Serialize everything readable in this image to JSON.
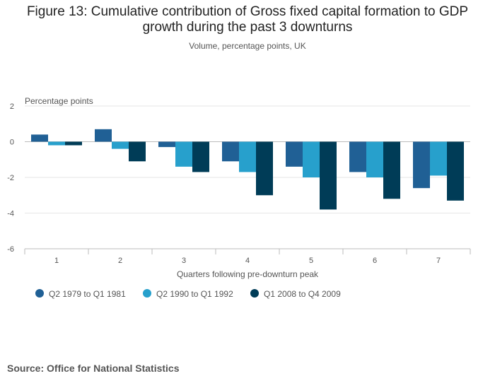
{
  "chart_data": {
    "type": "bar",
    "title": "Figure 13: Cumulative contribution of Gross fixed capital formation to GDP growth during the past 3 downturns",
    "title_lines": [
      "Figure 13: Cumulative contribution of Gross fixed capital formation to GDP",
      "growth during the past 3 downturns"
    ],
    "subtitle": "Volume, percentage points, UK",
    "ylabel": "Percentage points",
    "xlabel": "Quarters following pre-downturn peak",
    "categories": [
      "1",
      "2",
      "3",
      "4",
      "5",
      "6",
      "7"
    ],
    "ylim": [
      -6,
      2
    ],
    "yticks": [
      2,
      0,
      -2,
      -4,
      -6
    ],
    "grid": true,
    "legend_position": "bottom-left",
    "series": [
      {
        "name": "Q2 1979 to Q1 1981",
        "color": "#206095",
        "values": [
          0.4,
          0.7,
          -0.3,
          -1.1,
          -1.4,
          -1.7,
          -2.6
        ]
      },
      {
        "name": "Q2 1990 to Q1 1992",
        "color": "#27a0cc",
        "values": [
          -0.2,
          -0.4,
          -1.4,
          -1.7,
          -2.0,
          -2.0,
          -1.9
        ]
      },
      {
        "name": "Q1 2008 to Q4 2009",
        "color": "#003c57",
        "values": [
          -0.2,
          -1.1,
          -1.7,
          -3.0,
          -3.8,
          -3.2,
          -3.3
        ]
      }
    ]
  },
  "source": "Source: Office for National Statistics"
}
